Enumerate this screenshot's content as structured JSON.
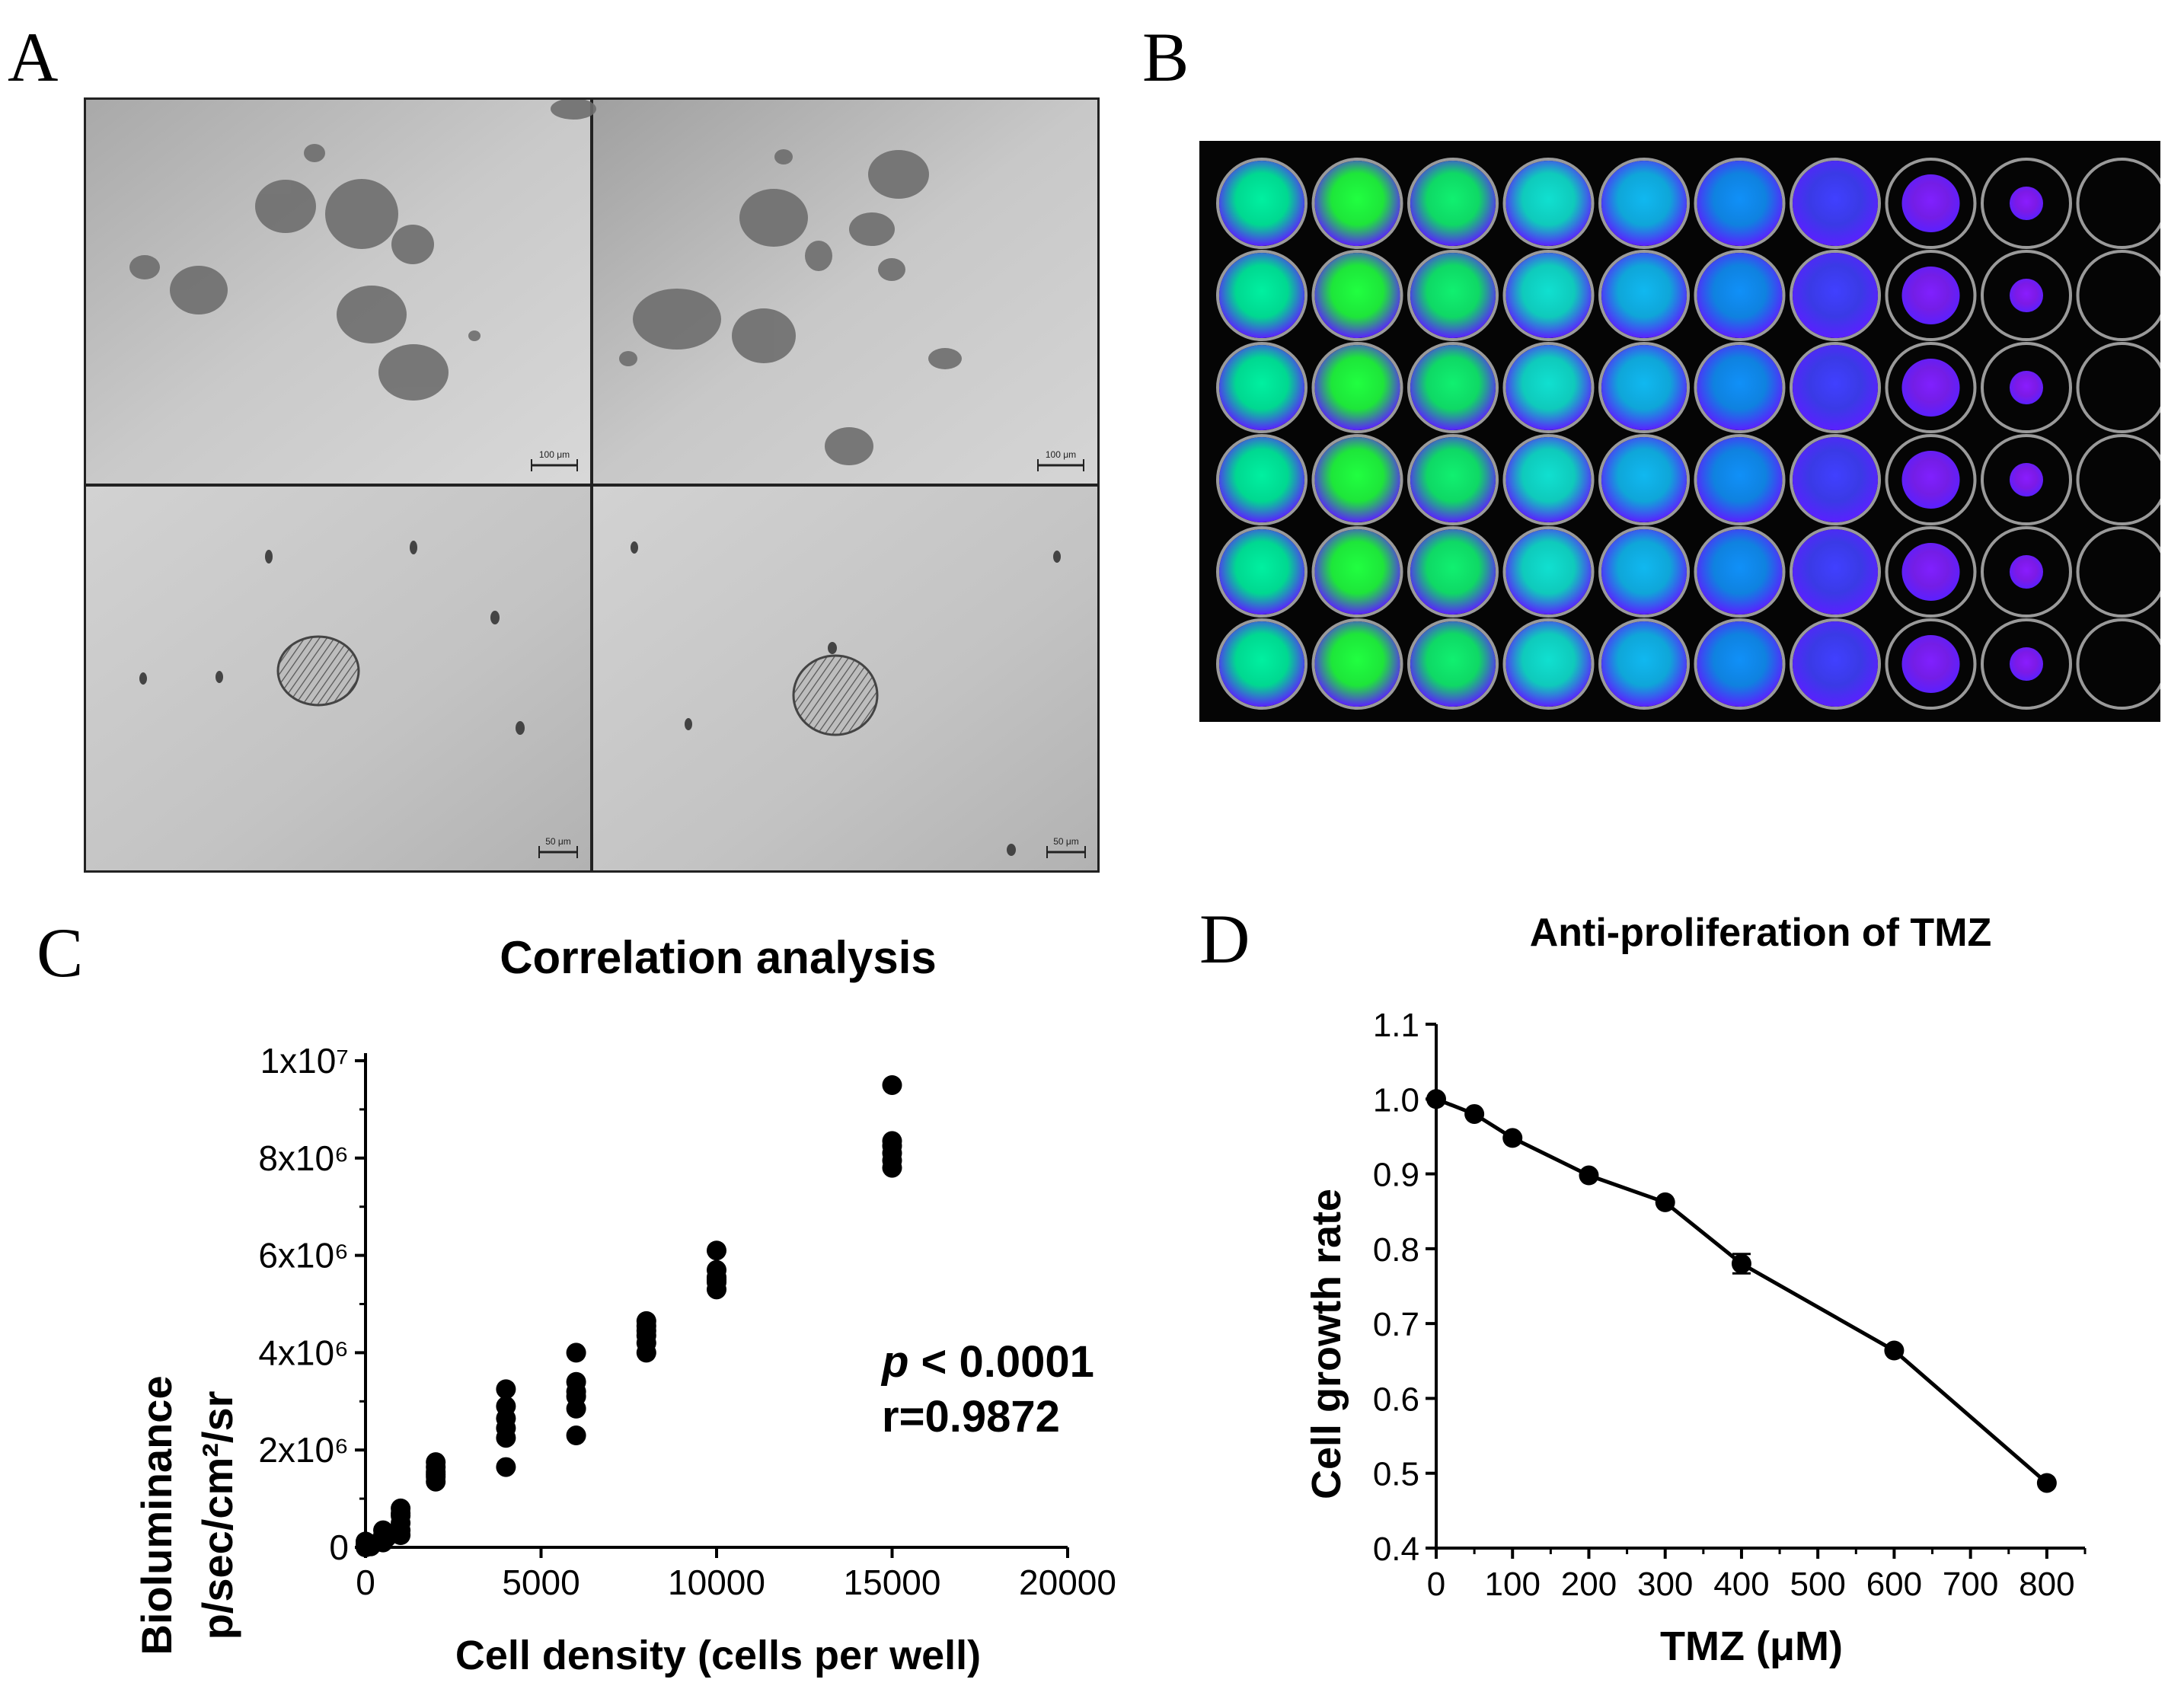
{
  "panels": {
    "a": "A",
    "b": "B",
    "c": "C",
    "d": "D"
  },
  "micrographs": {
    "scale_top_left": "100 μm",
    "scale_top_right": "100 μm",
    "scale_bottom_left": "50 μm",
    "scale_bottom_right": "50 μm"
  },
  "plate": {
    "rows": 6,
    "columns": 10,
    "column_colors": [
      "#00f0a0",
      "#20ff40",
      "#10f070",
      "#10e0d0",
      "#10b8f0",
      "#1090f8",
      "#4040ff",
      "#8020ff",
      "#8a1cff",
      "none"
    ],
    "outline_color": "#9a9a9a"
  },
  "chart_data": [
    {
      "type": "scatter",
      "title": "Correlation analysis",
      "xlabel": "Cell density (cells per well)",
      "ylabel_line1": "Bioluminance",
      "ylabel_line2": "p/sec/cm²/sr",
      "xlim": [
        0,
        20000
      ],
      "ylim": [
        0,
        10000000
      ],
      "xticks": [
        "0",
        "5000",
        "10000",
        "15000",
        "20000"
      ],
      "yticks": [
        "0",
        "2x10⁶",
        "4x10⁶",
        "6x10⁶",
        "8x10⁶",
        "1x10⁷"
      ],
      "annotation_p_italic": "p",
      "annotation_p": " < 0.0001",
      "annotation_r": "r=0.9872",
      "points": [
        [
          0,
          0
        ],
        [
          0,
          60000
        ],
        [
          0,
          120000
        ],
        [
          0,
          30000
        ],
        [
          100,
          80000
        ],
        [
          150,
          20000
        ],
        [
          500,
          150000
        ],
        [
          500,
          250000
        ],
        [
          500,
          350000
        ],
        [
          600,
          200000
        ],
        [
          500,
          100000
        ],
        [
          600,
          300000
        ],
        [
          1000,
          350000
        ],
        [
          1000,
          500000
        ],
        [
          1000,
          650000
        ],
        [
          1000,
          800000
        ],
        [
          1000,
          250000
        ],
        [
          1000,
          700000
        ],
        [
          2000,
          1350000
        ],
        [
          2000,
          1450000
        ],
        [
          2000,
          1550000
        ],
        [
          2000,
          1650000
        ],
        [
          2000,
          1750000
        ],
        [
          2000,
          1500000
        ],
        [
          4000,
          1650000
        ],
        [
          4000,
          2250000
        ],
        [
          4000,
          2450000
        ],
        [
          4000,
          2650000
        ],
        [
          4000,
          2900000
        ],
        [
          4000,
          3250000
        ],
        [
          6000,
          2300000
        ],
        [
          6000,
          2850000
        ],
        [
          6000,
          3200000
        ],
        [
          6000,
          3400000
        ],
        [
          6000,
          4000000
        ],
        [
          6000,
          3100000
        ],
        [
          8000,
          4000000
        ],
        [
          8000,
          4200000
        ],
        [
          8000,
          4350000
        ],
        [
          8000,
          4450000
        ],
        [
          8000,
          4550000
        ],
        [
          8000,
          4650000
        ],
        [
          10000,
          5300000
        ],
        [
          10000,
          5450000
        ],
        [
          10000,
          5550000
        ],
        [
          10000,
          5700000
        ],
        [
          10000,
          6100000
        ],
        [
          10000,
          5500000
        ],
        [
          15000,
          7800000
        ],
        [
          15000,
          7950000
        ],
        [
          15000,
          8100000
        ],
        [
          15000,
          8250000
        ],
        [
          15000,
          8350000
        ],
        [
          15000,
          9500000
        ]
      ]
    },
    {
      "type": "line",
      "title": "Anti-proliferation of TMZ",
      "xlabel": "TMZ (μM)",
      "ylabel": "Cell growth rate",
      "xlim": [
        0,
        850
      ],
      "ylim": [
        0.4,
        1.1
      ],
      "xticks": [
        "0",
        "100",
        "200",
        "300",
        "400",
        "500",
        "600",
        "700",
        "800"
      ],
      "yticks": [
        "0.4",
        "0.5",
        "0.6",
        "0.7",
        "0.8",
        "0.9",
        "1.0",
        "1.1"
      ],
      "x": [
        0,
        50,
        100,
        200,
        300,
        400,
        600,
        800
      ],
      "y": [
        1.0,
        0.98,
        0.948,
        0.898,
        0.862,
        0.78,
        0.664,
        0.487
      ],
      "error": [
        0.005,
        0.005,
        0.005,
        0.005,
        0.005,
        0.013,
        0.005,
        0.005
      ]
    }
  ]
}
